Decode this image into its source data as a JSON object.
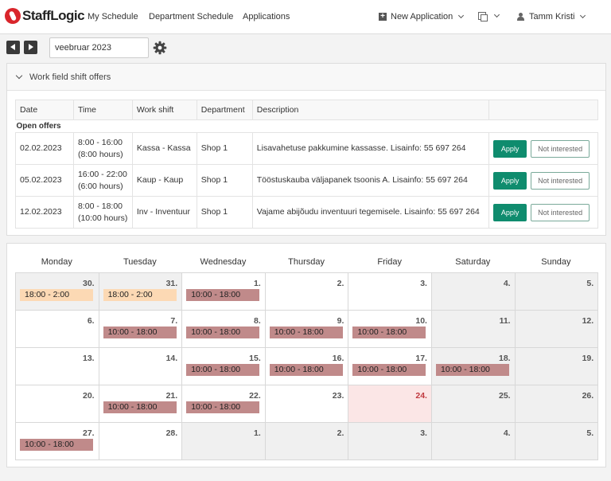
{
  "brand": {
    "name": "StaffLogic"
  },
  "nav": {
    "links": [
      "My Schedule",
      "Department Schedule",
      "Applications"
    ],
    "new_application": "New Application",
    "user": "Tamm Kristi"
  },
  "toolbar": {
    "month": "veebruar 2023"
  },
  "offers": {
    "title": "Work field shift offers",
    "columns": [
      "Date",
      "Time",
      "Work shift",
      "Department",
      "Description"
    ],
    "group_label": "Open offers",
    "apply_label": "Apply",
    "not_interested_label": "Not interested",
    "rows": [
      {
        "date": "02.02.2023",
        "time": "8:00 - 16:00",
        "hours": "(8:00 hours)",
        "shift": "Kassa - Kassa",
        "department": "Shop 1",
        "description": "Lisavahetuse pakkumine kassasse. Lisainfo: 55 697 264"
      },
      {
        "date": "05.02.2023",
        "time": "16:00 - 22:00",
        "hours": "(6:00 hours)",
        "shift": "Kaup - Kaup",
        "department": "Shop 1",
        "description": "Tööstuskauba väljapanek tsoonis A. Lisainfo: 55 697 264"
      },
      {
        "date": "12.02.2023",
        "time": "8:00 - 18:00",
        "hours": "(10:00 hours)",
        "shift": "Inv - Inventuur",
        "department": "Shop 1",
        "description": "Vajame abijõudu inventuuri tegemisele. Lisainfo: 55 697 264"
      }
    ]
  },
  "calendar": {
    "weekdays": [
      "Monday",
      "Tuesday",
      "Wednesday",
      "Thursday",
      "Friday",
      "Saturday",
      "Sunday"
    ],
    "weeks": [
      [
        {
          "day": "30.",
          "shift": "18:00 - 2:00",
          "kind": "peach",
          "state": "other"
        },
        {
          "day": "31.",
          "shift": "18:00 - 2:00",
          "kind": "peach",
          "state": "other"
        },
        {
          "day": "1.",
          "shift": "10:00 - 18:00",
          "kind": "red"
        },
        {
          "day": "2."
        },
        {
          "day": "3."
        },
        {
          "day": "4.",
          "state": "weekend"
        },
        {
          "day": "5.",
          "state": "weekend"
        }
      ],
      [
        {
          "day": "6."
        },
        {
          "day": "7.",
          "shift": "10:00 - 18:00",
          "kind": "red"
        },
        {
          "day": "8.",
          "shift": "10:00 - 18:00",
          "kind": "red"
        },
        {
          "day": "9.",
          "shift": "10:00 - 18:00",
          "kind": "red"
        },
        {
          "day": "10.",
          "shift": "10:00 - 18:00",
          "kind": "red"
        },
        {
          "day": "11.",
          "state": "weekend"
        },
        {
          "day": "12.",
          "state": "weekend"
        }
      ],
      [
        {
          "day": "13."
        },
        {
          "day": "14."
        },
        {
          "day": "15.",
          "shift": "10:00 - 18:00",
          "kind": "red"
        },
        {
          "day": "16.",
          "shift": "10:00 - 18:00",
          "kind": "red"
        },
        {
          "day": "17.",
          "shift": "10:00 - 18:00",
          "kind": "red"
        },
        {
          "day": "18.",
          "shift": "10:00 - 18:00",
          "kind": "red",
          "state": "weekend"
        },
        {
          "day": "19.",
          "state": "weekend"
        }
      ],
      [
        {
          "day": "20."
        },
        {
          "day": "21.",
          "shift": "10:00 - 18:00",
          "kind": "red"
        },
        {
          "day": "22.",
          "shift": "10:00 - 18:00",
          "kind": "red"
        },
        {
          "day": "23."
        },
        {
          "day": "24.",
          "state": "today"
        },
        {
          "day": "25.",
          "state": "weekend"
        },
        {
          "day": "26.",
          "state": "weekend"
        }
      ],
      [
        {
          "day": "27.",
          "shift": "10:00 - 18:00",
          "kind": "red"
        },
        {
          "day": "28."
        },
        {
          "day": "1.",
          "state": "other"
        },
        {
          "day": "2.",
          "state": "other"
        },
        {
          "day": "3.",
          "state": "other"
        },
        {
          "day": "4.",
          "state": "other"
        },
        {
          "day": "5.",
          "state": "other"
        }
      ]
    ]
  },
  "colors": {
    "accent": "#0f8c6e",
    "shift": "#c08a8a",
    "shift_other": "#fcd9b4",
    "today": "#fbe6e6",
    "brand": "#d9252b"
  }
}
